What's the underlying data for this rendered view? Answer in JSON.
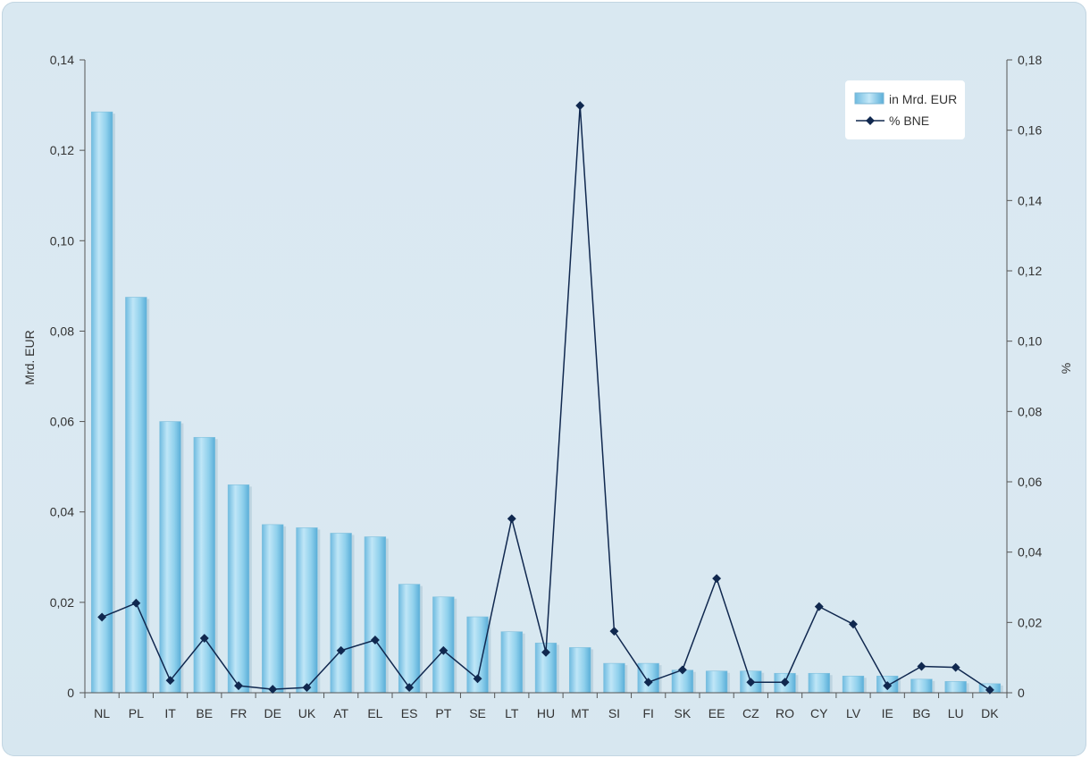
{
  "chart_data": {
    "type": "bar",
    "categories": [
      "NL",
      "PL",
      "IT",
      "BE",
      "FR",
      "DE",
      "UK",
      "AT",
      "EL",
      "ES",
      "PT",
      "SE",
      "LT",
      "HU",
      "MT",
      "SI",
      "FI",
      "SK",
      "EE",
      "CZ",
      "RO",
      "CY",
      "LV",
      "IE",
      "BG",
      "LU",
      "DK"
    ],
    "series": [
      {
        "name": "in Mrd. EUR",
        "type": "bar",
        "axis": "left",
        "color": "#8ecfe8",
        "values": [
          0.1285,
          0.0875,
          0.06,
          0.0565,
          0.046,
          0.0372,
          0.0365,
          0.0353,
          0.0345,
          0.024,
          0.0212,
          0.0168,
          0.0135,
          0.011,
          0.01,
          0.0065,
          0.0065,
          0.005,
          0.0048,
          0.0048,
          0.0043,
          0.0043,
          0.0037,
          0.0037,
          0.003,
          0.0025,
          0.002
        ]
      },
      {
        "name": "% BNE",
        "type": "line",
        "axis": "right",
        "color": "#10284f",
        "values": [
          0.0215,
          0.0255,
          0.0035,
          0.0155,
          0.002,
          0.001,
          0.0015,
          0.012,
          0.015,
          0.0015,
          0.012,
          0.004,
          0.0495,
          0.0115,
          0.167,
          0.0175,
          0.003,
          0.0065,
          0.0325,
          0.003,
          0.003,
          0.0245,
          0.0195,
          0.002,
          0.0075,
          0.0072,
          0.0008
        ]
      }
    ],
    "y_left": {
      "label": "Mrd. EUR",
      "lim": [
        0,
        0.14
      ],
      "ticks": [
        "0",
        "0,02",
        "0,04",
        "0,06",
        "0,08",
        "0,10",
        "0,12",
        "0,14"
      ]
    },
    "y_right": {
      "label": "%",
      "lim": [
        0,
        0.18
      ],
      "ticks": [
        "0",
        "0,02",
        "0,04",
        "0,06",
        "0,08",
        "0,10",
        "0,12",
        "0,14",
        "0,16",
        "0,18"
      ]
    },
    "legend_position": "top-right",
    "grid": false
  }
}
